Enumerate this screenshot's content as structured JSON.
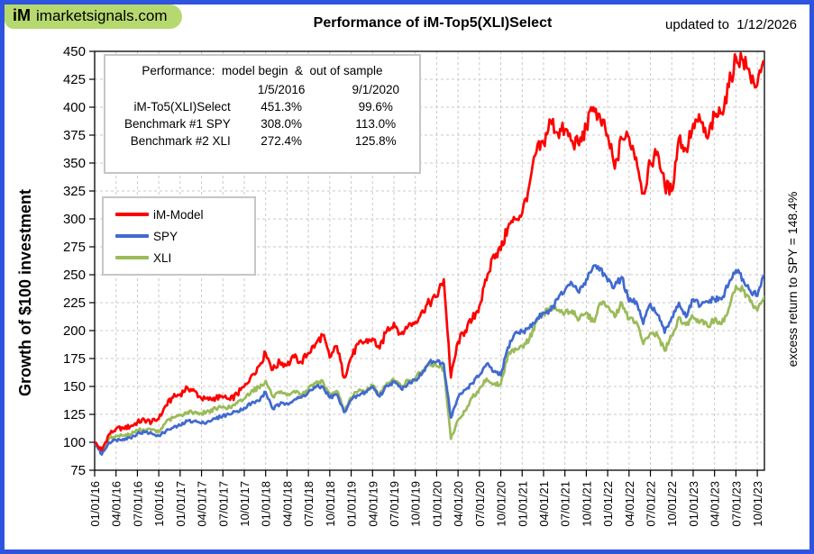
{
  "logo": {
    "mark": "iM",
    "site": "imarketsignals.com"
  },
  "header": {
    "title": "Performance of iM-Top5(XLI)Select",
    "updated": "updated to  1/12/2026"
  },
  "y_axis_title": "Growth of $100 investment",
  "right_note": "excess return to SPY = 148.4%",
  "inset": {
    "heading": "Performance:  model begin  &  out of sample",
    "col_headers": [
      "1/5/2016",
      "9/1/2020"
    ],
    "rows": [
      {
        "label": "iM-To5(XLI)Select",
        "values": [
          "451.3%",
          "99.6%"
        ]
      },
      {
        "label": "Benchmark #1 SPY",
        "values": [
          "308.0%",
          "113.0%"
        ]
      },
      {
        "label": "Benchmark #2 XLI",
        "values": [
          "272.4%",
          "125.8%"
        ]
      }
    ]
  },
  "legend": [
    {
      "label": "iM-Model",
      "color": "#ff0000"
    },
    {
      "label": "SPY",
      "color": "#4169d0"
    },
    {
      "label": "XLI",
      "color": "#9bbb59"
    }
  ],
  "chart_data": {
    "type": "line",
    "title": "Performance of iM-Top5(XLI)Select",
    "ylabel": "Growth of $100 investment",
    "ylim": [
      75,
      450
    ],
    "ytick_step": 25,
    "grid": true,
    "legend_position": "upper-left-inside",
    "x_start": "2016-01",
    "x_end": "2023-11",
    "x_frequency": "monthly",
    "x_tick_labels": [
      "01/01/16",
      "04/01/16",
      "07/01/16",
      "10/01/16",
      "01/01/17",
      "04/01/17",
      "07/01/17",
      "10/01/17",
      "01/01/18",
      "04/01/18",
      "07/01/18",
      "10/01/18",
      "01/01/19",
      "04/01/19",
      "07/01/19",
      "10/01/19",
      "01/01/20",
      "04/01/20",
      "07/01/20",
      "10/01/20",
      "01/01/21",
      "04/01/21",
      "07/01/21",
      "10/01/21",
      "01/01/22",
      "04/01/22",
      "07/01/22",
      "10/01/22",
      "01/01/23",
      "04/01/23",
      "07/01/23",
      "10/01/23"
    ],
    "series": [
      {
        "name": "iM-Model",
        "color": "#ff0000",
        "values": [
          100,
          93,
          107,
          112,
          113,
          114,
          118,
          120,
          118,
          121,
          133,
          140,
          143,
          149,
          146,
          139,
          138,
          140,
          140,
          138,
          143,
          150,
          160,
          168,
          180,
          165,
          172,
          169,
          176,
          172,
          180,
          188,
          196,
          176,
          186,
          158,
          176,
          188,
          190,
          193,
          184,
          200,
          207,
          197,
          204,
          208,
          218,
          225,
          230,
          246,
          158,
          190,
          200,
          210,
          222,
          245,
          268,
          272,
          292,
          300,
          305,
          330,
          360,
          368,
          388,
          377,
          380,
          370,
          366,
          382,
          400,
          388,
          375,
          345,
          372,
          373,
          355,
          323,
          350,
          360,
          330,
          325,
          372,
          362,
          385,
          388,
          372,
          392,
          395,
          418,
          445,
          442,
          428,
          420,
          440
        ]
      },
      {
        "name": "SPY",
        "color": "#4169d0",
        "values": [
          100,
          89,
          100,
          102,
          103,
          104,
          108,
          109,
          108,
          106,
          110,
          113,
          115,
          119,
          119,
          117,
          119,
          121,
          124,
          125,
          128,
          131,
          135,
          137,
          145,
          130,
          134,
          135,
          138,
          140,
          145,
          149,
          150,
          140,
          143,
          127,
          138,
          142,
          145,
          150,
          141,
          151,
          154,
          148,
          153,
          156,
          162,
          172,
          172,
          170,
          122,
          140,
          147,
          153,
          160,
          170,
          163,
          160,
          185,
          198,
          199,
          202,
          210,
          216,
          218,
          228,
          236,
          242,
          234,
          246,
          258,
          256,
          244,
          240,
          248,
          226,
          226,
          206,
          224,
          214,
          198,
          212,
          225,
          212,
          228,
          222,
          226,
          228,
          228,
          242,
          254,
          246,
          236,
          231,
          250
        ]
      },
      {
        "name": "XLI",
        "color": "#9bbb59",
        "values": [
          100,
          91,
          103,
          106,
          106,
          107,
          111,
          111,
          111,
          109,
          118,
          122,
          124,
          127,
          127,
          126,
          128,
          130,
          132,
          131,
          135,
          139,
          146,
          149,
          155,
          141,
          144,
          142,
          146,
          143,
          148,
          153,
          155,
          141,
          146,
          128,
          140,
          146,
          146,
          151,
          142,
          153,
          156,
          150,
          155,
          157,
          164,
          170,
          168,
          165,
          103,
          120,
          128,
          140,
          148,
          157,
          152,
          152,
          178,
          184,
          186,
          192,
          208,
          215,
          222,
          218,
          216,
          218,
          210,
          216,
          208,
          225,
          222,
          212,
          225,
          210,
          208,
          188,
          198,
          196,
          182,
          195,
          212,
          205,
          212,
          208,
          204,
          210,
          206,
          220,
          240,
          236,
          226,
          218,
          230
        ]
      }
    ]
  }
}
